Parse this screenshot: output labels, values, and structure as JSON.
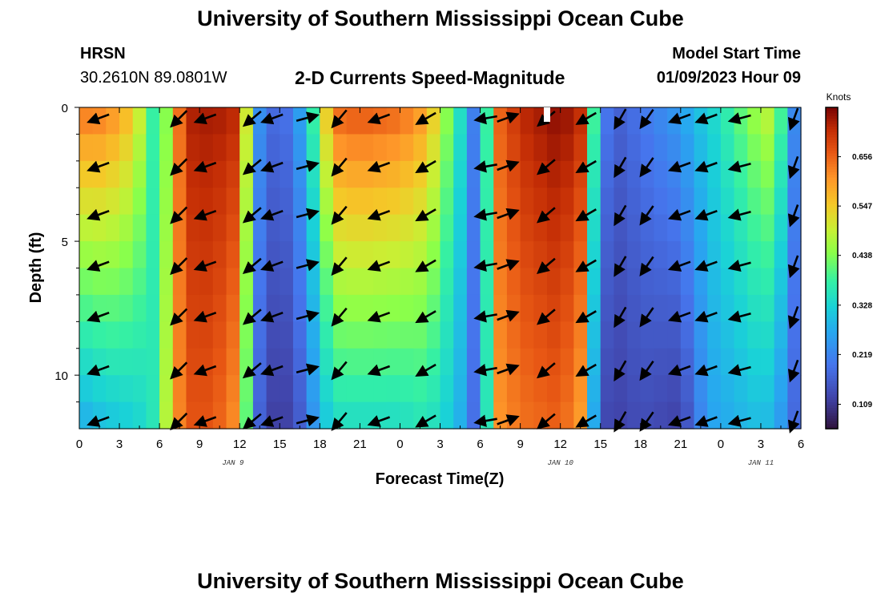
{
  "page": {
    "title_top": "University of Southern Mississippi Ocean Cube",
    "title_bottom": "University of Southern Mississippi Ocean Cube",
    "station": "HRSN",
    "coords": "30.2610N  89.0801W",
    "model_label": "Model Start Time",
    "model_time": "01/09/2023 Hour 09"
  },
  "chart_data": {
    "type": "heatmap",
    "title": "2-D Currents Speed-Magnitude",
    "xlabel": "Forecast Time(Z)",
    "ylabel": "Depth (ft)",
    "x_start_hour": 0,
    "x_end_hour": 54,
    "x_ticks": [
      0,
      3,
      6,
      9,
      12,
      15,
      18,
      21,
      24,
      27,
      30,
      33,
      36,
      39,
      42,
      45,
      48,
      51,
      54
    ],
    "x_tick_labels": [
      "0",
      "3",
      "6",
      "9",
      "12",
      "15",
      "18",
      "21",
      "0",
      "3",
      "6",
      "9",
      "12",
      "15",
      "18",
      "21",
      "0",
      "3",
      "6"
    ],
    "date_labels": [
      {
        "hour": 11.5,
        "text": "JAN 9"
      },
      {
        "hour": 36,
        "text": "JAN 10"
      },
      {
        "hour": 51,
        "text": "JAN 11"
      }
    ],
    "y_range": [
      0,
      12
    ],
    "y_ticks": [
      0,
      5,
      10
    ],
    "y_tick_labels": [
      "0",
      "5",
      "10"
    ],
    "colorbar": {
      "label": "Knots",
      "min": 0.055,
      "max": 0.765,
      "ticks": [
        0.109,
        0.219,
        0.328,
        0.438,
        0.547,
        0.656
      ],
      "tick_labels": [
        "0.109",
        "0.219",
        "0.328",
        "0.438",
        "0.547",
        "0.656"
      ]
    },
    "depths": [
      0,
      1,
      2,
      3,
      4,
      5,
      6,
      7,
      8,
      9,
      10,
      11,
      12
    ],
    "speed_profile": {
      "hours": [
        0,
        2,
        4,
        5,
        6,
        7,
        8,
        10,
        12,
        13,
        14,
        16,
        18,
        19,
        21,
        24,
        26,
        27.5,
        29,
        30,
        31,
        33,
        36,
        37.5,
        38,
        39,
        40,
        42,
        45,
        46,
        47,
        49,
        51,
        52,
        53,
        54
      ],
      "surface": [
        0.65,
        0.64,
        0.56,
        0.45,
        0.32,
        0.56,
        0.73,
        0.74,
        0.72,
        0.3,
        0.18,
        0.2,
        0.45,
        0.66,
        0.68,
        0.66,
        0.6,
        0.45,
        0.3,
        0.13,
        0.64,
        0.72,
        0.76,
        0.72,
        0.55,
        0.24,
        0.16,
        0.2,
        0.26,
        0.3,
        0.32,
        0.4,
        0.48,
        0.5,
        0.3,
        0.16
      ],
      "bottom": [
        0.27,
        0.3,
        0.32,
        0.34,
        0.38,
        0.58,
        0.67,
        0.67,
        0.6,
        0.22,
        0.12,
        0.12,
        0.28,
        0.34,
        0.34,
        0.34,
        0.36,
        0.32,
        0.26,
        0.12,
        0.6,
        0.64,
        0.66,
        0.6,
        0.4,
        0.14,
        0.12,
        0.14,
        0.12,
        0.18,
        0.26,
        0.28,
        0.3,
        0.28,
        0.22,
        0.14
      ]
    },
    "vectors": {
      "hours": [
        1.5,
        7.5,
        9.5,
        13,
        14.5,
        17,
        19.5,
        22.5,
        26,
        30.5,
        32,
        35,
        38,
        40.5,
        42.5,
        45,
        47,
        49.5,
        53.5
      ],
      "depths": [
        0.4,
        2.2,
        4.0,
        5.9,
        7.8,
        9.8,
        11.7
      ],
      "angles_deg": [
        200,
        225,
        200,
        220,
        200,
        15,
        230,
        200,
        210,
        190,
        20,
        220,
        210,
        240,
        235,
        200,
        200,
        195,
        250
      ]
    }
  }
}
